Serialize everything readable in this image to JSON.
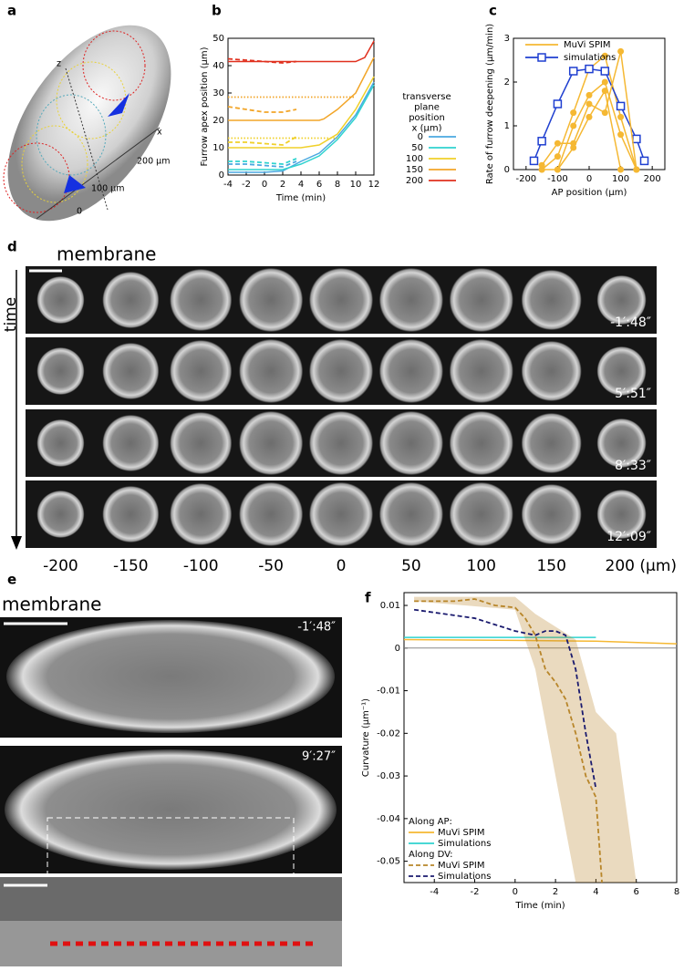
{
  "panel_labels": [
    "a",
    "b",
    "c",
    "d",
    "e",
    "f"
  ],
  "panel_a": {
    "axis_z": "z",
    "axis_x": "x",
    "mark_200": "200 µm",
    "mark_100": "100 µm",
    "mark_0": "0"
  },
  "chart_data": [
    {
      "type": "line",
      "xlabel": "Time (min)",
      "ylabel": "Furrow apex position (µm)",
      "xlim": [
        -4,
        12
      ],
      "xticks": [
        -4,
        -2,
        0,
        2,
        4,
        6,
        8,
        10,
        12
      ],
      "ylim": [
        0,
        50
      ],
      "yticks": [
        0,
        10,
        20,
        30,
        40,
        50
      ],
      "legend": "right",
      "legend_title": [
        "transverse",
        "plane",
        "position",
        "x (µm)"
      ],
      "series": [
        {
          "name": "0",
          "color": "#4aa8e0",
          "x": [
            -4,
            0,
            2,
            4,
            6,
            8,
            10,
            12
          ],
          "values": [
            1,
            1,
            1.5,
            5,
            8,
            14,
            22,
            34
          ]
        },
        {
          "name": "50",
          "color": "#2fd3cf",
          "x": [
            -4,
            0,
            2,
            4,
            6,
            8,
            10,
            12
          ],
          "values": [
            2,
            2,
            2,
            4,
            7,
            13,
            21,
            33
          ]
        },
        {
          "name": "100",
          "color": "#f0d02a",
          "x": [
            -4,
            0,
            4,
            6,
            8,
            10,
            12
          ],
          "values": [
            10,
            10,
            10,
            11,
            15,
            24,
            36
          ]
        },
        {
          "name": "150",
          "color": "#f2a528",
          "x": [
            -4,
            0,
            4,
            6,
            6.5,
            8,
            10,
            12
          ],
          "values": [
            20,
            20,
            20,
            20,
            20.5,
            24,
            30,
            43
          ]
        },
        {
          "name": "200",
          "color": "#e0301e",
          "x": [
            -4,
            0,
            4,
            8,
            10,
            11,
            12
          ],
          "values": [
            41.5,
            41.5,
            41.5,
            41.5,
            41.5,
            43,
            49
          ]
        },
        {
          "color": "#4aa8e0",
          "style": "dashed",
          "x": [
            -4,
            -2,
            0,
            2,
            3.5
          ],
          "values": [
            4,
            4,
            3.5,
            3,
            5
          ]
        },
        {
          "color": "#2fd3cf",
          "style": "dashed",
          "x": [
            -4,
            -2,
            0,
            2,
            3.5
          ],
          "values": [
            5,
            5,
            4.5,
            4,
            6
          ]
        },
        {
          "color": "#f0d02a",
          "style": "dashed",
          "x": [
            -4,
            -2,
            0,
            2,
            3.5
          ],
          "values": [
            12,
            12,
            11.5,
            11,
            14
          ]
        },
        {
          "color": "#f2a528",
          "style": "dashed",
          "x": [
            -4,
            -2,
            0,
            2,
            3.5
          ],
          "values": [
            25,
            24,
            23,
            23,
            24
          ]
        },
        {
          "color": "#e0301e",
          "style": "dashed",
          "x": [
            -4,
            -2,
            0,
            2,
            3.5
          ],
          "values": [
            42.5,
            42,
            41.5,
            41,
            41.5
          ]
        },
        {
          "color": "#f0d02a",
          "style": "dotted",
          "x": [
            -4,
            8
          ],
          "values": [
            13.5,
            13.5
          ]
        },
        {
          "color": "#f2a528",
          "style": "dotted",
          "x": [
            -4,
            10
          ],
          "values": [
            28.5,
            28.5
          ]
        }
      ]
    },
    {
      "type": "line",
      "xlabel": "AP position (µm)",
      "ylabel": "Rate of furrow deepening (µm/min)",
      "xlim": [
        -240,
        240
      ],
      "xticks": [
        -200,
        -100,
        0,
        100,
        200
      ],
      "ylim": [
        0,
        3
      ],
      "yticks": [
        0,
        1,
        2,
        3
      ],
      "legend": "top",
      "series": [
        {
          "name": "MuVi SPIM",
          "color": "#f5b833",
          "marker": "circle",
          "x": [
            -150,
            -100,
            -50,
            0,
            50,
            100,
            150
          ],
          "values": [
            0,
            0.3,
            1.3,
            2.3,
            2.6,
            1.2,
            0
          ]
        },
        {
          "name": "simulations",
          "color": "#1f3fd0",
          "marker": "square",
          "x": [
            -175,
            -150,
            -100,
            -50,
            0,
            50,
            100,
            150,
            175
          ],
          "values": [
            0.2,
            0.65,
            1.5,
            2.25,
            2.3,
            2.25,
            1.45,
            0.7,
            0.2
          ]
        },
        {
          "color": "#f5b833",
          "marker": "circle",
          "x": [
            -150,
            -100,
            -50,
            0,
            50,
            100,
            150
          ],
          "values": [
            0,
            0,
            1,
            1.7,
            2,
            0.8,
            0
          ]
        },
        {
          "color": "#f5b833",
          "marker": "circle",
          "x": [
            -100,
            -50,
            0,
            50,
            100
          ],
          "values": [
            0,
            0.5,
            1.2,
            1.8,
            0
          ]
        },
        {
          "color": "#f5b833",
          "marker": "circle",
          "x": [
            -150,
            -100,
            -50,
            0,
            50,
            100,
            150
          ],
          "values": [
            0.1,
            0.6,
            0.6,
            1.5,
            1.3,
            2.7,
            0
          ]
        }
      ]
    },
    {
      "type": "line",
      "xlabel": "Time (min)",
      "ylabel": "Curvature (µm⁻¹)",
      "xlim": [
        -5.5,
        8
      ],
      "xticks": [
        -4,
        -2,
        0,
        2,
        4,
        6,
        8
      ],
      "ylim": [
        -0.055,
        0.013
      ],
      "yticks": [
        0.01,
        0,
        -0.01,
        -0.02,
        -0.03,
        -0.04,
        -0.05
      ],
      "zero_line": true,
      "legend": "lower left",
      "legend_headers": [
        "Along AP:",
        "Along DV:"
      ],
      "series": [
        {
          "name": "MuVi SPIM",
          "color": "#f5b833",
          "x": [
            -5.5,
            0,
            4,
            8
          ],
          "values": [
            0.002,
            0.0018,
            0.0016,
            0.001
          ]
        },
        {
          "name": "Simulations",
          "color": "#2fd3cf",
          "x": [
            -5.5,
            4
          ],
          "values": [
            0.0025,
            0.0025
          ]
        },
        {
          "name": "MuVi SPIM",
          "color": "#b8862a",
          "style": "dashed",
          "x": [
            -5,
            -3,
            -2,
            -1,
            0,
            0.5,
            1,
            1.5,
            2,
            2.5,
            3,
            3.5,
            4,
            4.3
          ],
          "values": [
            0.011,
            0.011,
            0.0115,
            0.01,
            0.0095,
            0.007,
            0.003,
            -0.005,
            -0.008,
            -0.012,
            -0.02,
            -0.03,
            -0.035,
            -0.055
          ],
          "band_x": [
            -5,
            0,
            1,
            2,
            3,
            4,
            5,
            6
          ],
          "band_lower": [
            0.011,
            0.009,
            -0.005,
            -0.03,
            -0.055,
            -0.055,
            -0.055,
            -0.055
          ],
          "band_upper": [
            0.012,
            0.012,
            0.008,
            0.005,
            0.002,
            -0.015,
            -0.02,
            -0.055
          ]
        },
        {
          "name": "Simulations",
          "color": "#1a1a6e",
          "style": "dashed",
          "x": [
            -5,
            -2,
            0,
            1,
            1.5,
            2,
            2.5,
            3,
            3.5,
            4
          ],
          "values": [
            0.009,
            0.007,
            0.004,
            0.003,
            0.004,
            0.004,
            0.003,
            -0.005,
            -0.02,
            -0.033
          ]
        }
      ]
    }
  ],
  "panel_d": {
    "title": "membrane",
    "axis_label": "time",
    "timestamps": [
      "-1′:48″",
      "5′:51″",
      "8′:33″",
      "12′:09″"
    ],
    "positions": [
      "-200",
      "-150",
      "-100",
      "-50",
      "0",
      "50",
      "100",
      "150",
      "200 (µm)"
    ]
  },
  "panel_e": {
    "title": "membrane",
    "timestamps": [
      "-1′:48″",
      "9′:27″"
    ]
  }
}
